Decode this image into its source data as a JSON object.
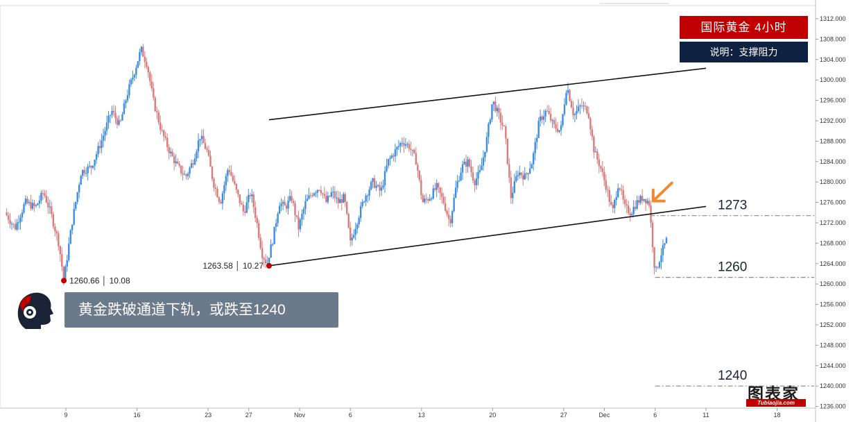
{
  "header": {
    "title": "国际黄金  4小时",
    "subtitle": "说明：支撑阻力"
  },
  "callout": {
    "text": "黄金跌破通道下轨，或跌至1240"
  },
  "logo": {
    "main": "图表家",
    "sub": "Tubiaojia.com"
  },
  "chart_data": {
    "type": "candlestick",
    "instrument": "国际黄金",
    "timeframe": "4小时",
    "ylim": [
      1233,
      1314
    ],
    "y_ticks": [
      "1312.000",
      "1308.000",
      "1304.000",
      "1300.000",
      "1296.000",
      "1292.000",
      "1288.000",
      "1284.000",
      "1280.000",
      "1276.000",
      "1272.000",
      "1268.000",
      "1264.000",
      "1260.000",
      "1256.000",
      "1252.000",
      "1248.000",
      "1244.000",
      "1240.000",
      "1236.000"
    ],
    "x_ticks": [
      {
        "label": "9",
        "day": 9
      },
      {
        "label": "16",
        "day": 16
      },
      {
        "label": "23",
        "day": 23
      },
      {
        "label": "27",
        "day": 27
      },
      {
        "label": "Nov",
        "day": 32
      },
      {
        "label": "6",
        "day": 37
      },
      {
        "label": "13",
        "day": 44
      },
      {
        "label": "20",
        "day": 51
      },
      {
        "label": "27",
        "day": 58
      },
      {
        "label": "Dec",
        "day": 62
      },
      {
        "label": "6",
        "day": 67
      },
      {
        "label": "11",
        "day": 72
      },
      {
        "label": "18",
        "day": 79
      }
    ],
    "price_path": [
      [
        3,
        1274
      ],
      [
        4,
        1271
      ],
      [
        5,
        1276
      ],
      [
        6,
        1275
      ],
      [
        6.8,
        1278
      ],
      [
        7.5,
        1274
      ],
      [
        8.3,
        1268
      ],
      [
        8.8,
        1260.7
      ],
      [
        9.6,
        1272
      ],
      [
        10.5,
        1282
      ],
      [
        11.5,
        1283
      ],
      [
        12.5,
        1288
      ],
      [
        13.5,
        1294
      ],
      [
        14.3,
        1291
      ],
      [
        15,
        1297
      ],
      [
        15.8,
        1302
      ],
      [
        16.4,
        1306
      ],
      [
        17,
        1303
      ],
      [
        17.6,
        1296
      ],
      [
        18.4,
        1290
      ],
      [
        19.2,
        1286
      ],
      [
        20,
        1283
      ],
      [
        20.8,
        1281
      ],
      [
        21.5,
        1284
      ],
      [
        22.2,
        1289
      ],
      [
        22.9,
        1286
      ],
      [
        23.5,
        1280
      ],
      [
        24.2,
        1276
      ],
      [
        25,
        1283
      ],
      [
        25.8,
        1278
      ],
      [
        26.5,
        1274
      ],
      [
        27.2,
        1278
      ],
      [
        27.8,
        1272
      ],
      [
        28.3,
        1266
      ],
      [
        28.8,
        1264
      ],
      [
        29.4,
        1269
      ],
      [
        30,
        1276
      ],
      [
        30.6,
        1275
      ],
      [
        31.2,
        1277
      ],
      [
        31.9,
        1271
      ],
      [
        32.6,
        1276
      ],
      [
        33.3,
        1278
      ],
      [
        34,
        1279
      ],
      [
        34.6,
        1276
      ],
      [
        35.2,
        1278
      ],
      [
        35.8,
        1276
      ],
      [
        36.4,
        1277
      ],
      [
        37,
        1268
      ],
      [
        37.6,
        1272
      ],
      [
        38.4,
        1277
      ],
      [
        39.2,
        1280
      ],
      [
        40,
        1278
      ],
      [
        40.7,
        1284
      ],
      [
        41.4,
        1286
      ],
      [
        42.1,
        1288
      ],
      [
        42.8,
        1287
      ],
      [
        43.5,
        1284
      ],
      [
        44.1,
        1276
      ],
      [
        44.8,
        1277
      ],
      [
        45.5,
        1279
      ],
      [
        46.2,
        1276
      ],
      [
        46.8,
        1272
      ],
      [
        47.4,
        1279
      ],
      [
        48,
        1283
      ],
      [
        48.6,
        1284
      ],
      [
        49.2,
        1280
      ],
      [
        49.8,
        1282
      ],
      [
        50.4,
        1288
      ],
      [
        51,
        1296
      ],
      [
        51.6,
        1293
      ],
      [
        52.2,
        1290
      ],
      [
        52.8,
        1277
      ],
      [
        53.5,
        1282
      ],
      [
        54.2,
        1281
      ],
      [
        54.9,
        1284
      ],
      [
        55.6,
        1292
      ],
      [
        56.3,
        1294
      ],
      [
        57,
        1291
      ],
      [
        57.7,
        1290
      ],
      [
        58.3,
        1299
      ],
      [
        59,
        1293
      ],
      [
        59.7,
        1295
      ],
      [
        60.4,
        1294
      ],
      [
        61,
        1286
      ],
      [
        61.6,
        1283
      ],
      [
        62.2,
        1279
      ],
      [
        62.8,
        1274
      ],
      [
        63.4,
        1280
      ],
      [
        64,
        1275
      ],
      [
        64.6,
        1274
      ],
      [
        65.2,
        1276
      ],
      [
        65.8,
        1277
      ],
      [
        66.4,
        1276
      ],
      [
        67,
        1262
      ],
      [
        67.6,
        1266
      ],
      [
        68.2,
        1269
      ]
    ],
    "channel": {
      "upper": {
        "x": [
          29,
          72
        ],
        "y": [
          1292.2,
          1302.3
        ]
      },
      "lower": {
        "x": [
          29,
          72
        ],
        "y": [
          1263.58,
          1275.2
        ]
      }
    },
    "levels": [
      {
        "label": "1273",
        "value": 1273.4,
        "x_start": 66.5
      },
      {
        "label": "1260",
        "value": 1261.3,
        "x_start": 67
      },
      {
        "label": "1240",
        "value": 1240.0,
        "x_start": 67
      }
    ],
    "points": [
      {
        "x": 8.8,
        "y": 1260.66,
        "label": "1260.66 │ 10.08",
        "side": "right"
      },
      {
        "x": 29,
        "y": 1263.58,
        "label": "1263.58 │ 10.27",
        "side": "left"
      }
    ],
    "arrow_target": {
      "x": 66.6,
      "y": 1276
    },
    "colors": {
      "up": "#3d8de0",
      "down": "#d97b7b",
      "accent": "#c00000",
      "arrow": "#ef8a30",
      "channel": "#111111"
    }
  }
}
